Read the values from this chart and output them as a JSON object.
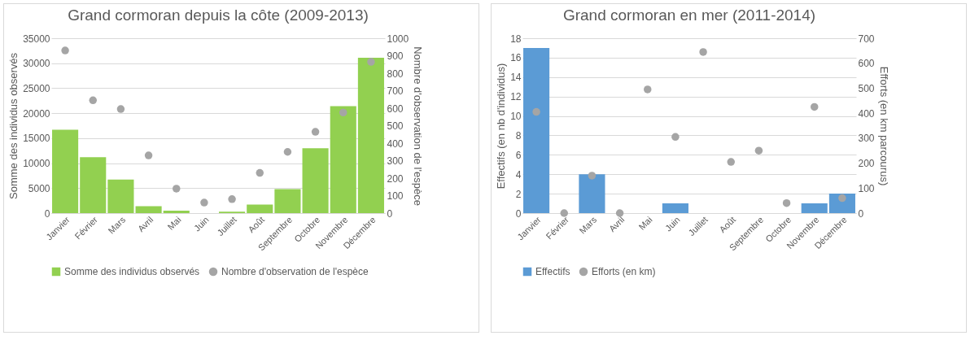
{
  "chart_data": [
    {
      "type": "bar",
      "title": "Grand cormoran depuis la côte (2009-2013)",
      "ylabel": "Somme des individus observés",
      "y2label": "Nombre d'observation de l'espèce",
      "categories": [
        "Janvier",
        "Février",
        "Mars",
        "Avril",
        "Mai",
        "Juin",
        "Juillet",
        "Août",
        "Septembre",
        "Octobre",
        "Novembre",
        "Décembre"
      ],
      "series": [
        {
          "name": "Somme des individus observés",
          "color": "#92d050",
          "values": [
            16700,
            11200,
            6700,
            1400,
            500,
            0,
            300,
            1700,
            4800,
            13000,
            21400,
            31100
          ]
        },
        {
          "name": "Nombre d'observation de l'espèce",
          "type": "scatter",
          "axis": "y2",
          "color": "#a5a5a5",
          "values": [
            930,
            645,
            595,
            330,
            140,
            60,
            80,
            230,
            350,
            465,
            575,
            865
          ]
        }
      ],
      "ylim": [
        0,
        35000
      ],
      "yticks": [
        0,
        5000,
        10000,
        15000,
        20000,
        25000,
        30000,
        35000
      ],
      "y2lim": [
        0,
        1000
      ],
      "y2ticks": [
        0,
        100,
        200,
        300,
        400,
        500,
        600,
        700,
        800,
        900,
        1000
      ],
      "grid": "y",
      "legend": "bottom",
      "marker": "circle"
    },
    {
      "type": "bar",
      "title": "Grand cormoran en mer (2011-2014)",
      "ylabel": "Effectifs (en nb d'individus)",
      "y2label": "Efforts (en km parcourus)",
      "categories": [
        "Janvier",
        "Février",
        "Mars",
        "Avril",
        "Mai",
        "Juin",
        "Juillet",
        "Août",
        "Septembre",
        "Octobre",
        "Novembre",
        "Décembre"
      ],
      "series": [
        {
          "name": "Effectifs",
          "color": "#5b9bd5",
          "values": [
            17,
            0,
            4,
            0,
            0,
            1,
            0,
            0,
            0,
            0,
            1,
            2
          ]
        },
        {
          "name": "Efforts (en km)",
          "type": "scatter",
          "axis": "y2",
          "color": "#a5a5a5",
          "values": [
            405,
            0,
            150,
            0,
            495,
            305,
            645,
            205,
            250,
            40,
            425,
            60
          ]
        }
      ],
      "ylim": [
        0,
        18
      ],
      "yticks": [
        0,
        2,
        4,
        6,
        8,
        10,
        12,
        14,
        16,
        18
      ],
      "y2lim": [
        0,
        700
      ],
      "y2ticks": [
        0,
        100,
        200,
        300,
        400,
        500,
        600,
        700
      ],
      "grid": "y",
      "legend": "bottom",
      "marker": "circle"
    }
  ]
}
